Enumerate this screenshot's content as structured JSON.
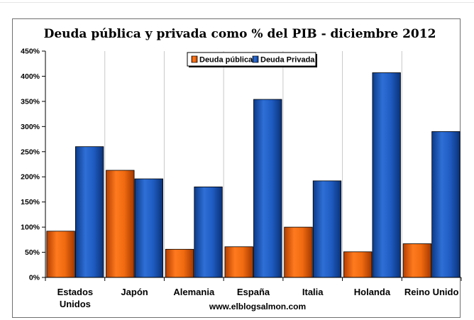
{
  "chart_data": {
    "type": "bar",
    "title": "Deuda pública y privada como % del PIB - diciembre 2012",
    "categories": [
      [
        "Estados",
        "Unidos"
      ],
      [
        "Japón"
      ],
      [
        "Alemania"
      ],
      [
        "España"
      ],
      [
        "Italia"
      ],
      [
        "Holanda"
      ],
      [
        "Reino Unido"
      ]
    ],
    "series": [
      {
        "name": "Deuda pública",
        "values": [
          92,
          213,
          56,
          61,
          100,
          51,
          67
        ],
        "color": "#e8600c"
      },
      {
        "name": "Deuda Privada",
        "values": [
          260,
          196,
          180,
          354,
          192,
          407,
          290
        ],
        "color": "#1a58b8"
      }
    ],
    "ylim": [
      0,
      450
    ],
    "yticks": [
      "0%",
      "50%",
      "100%",
      "150%",
      "200%",
      "250%",
      "300%",
      "350%",
      "400%",
      "450%"
    ],
    "grid": "vertical",
    "legend": "top-center",
    "xlabel": "",
    "ylabel": ""
  },
  "source": "www.elblogsalmon.com"
}
